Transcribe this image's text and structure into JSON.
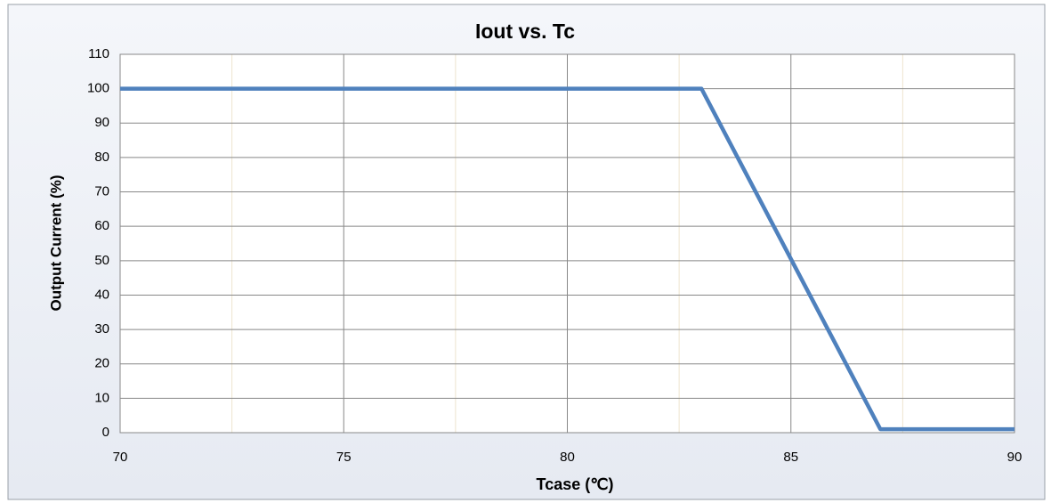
{
  "chart_data": {
    "type": "line",
    "title": "Iout vs. Tc",
    "xlabel": "Tcase (℃)",
    "ylabel": "Output Current (%)",
    "series": [
      {
        "name": "Iout",
        "color": "#4f81bd",
        "x": [
          70,
          83,
          87,
          90
        ],
        "values": [
          100,
          100,
          1,
          1
        ]
      }
    ],
    "xlim": [
      70,
      90
    ],
    "xticks": [
      70,
      75,
      80,
      85,
      90
    ],
    "xminorticks": [
      72.5,
      77.5,
      82.5,
      87.5
    ],
    "ylim": [
      0,
      110
    ],
    "yticks": [
      0,
      10,
      20,
      30,
      40,
      50,
      60,
      70,
      80,
      90,
      100,
      110
    ],
    "grid": true,
    "legend": false
  }
}
